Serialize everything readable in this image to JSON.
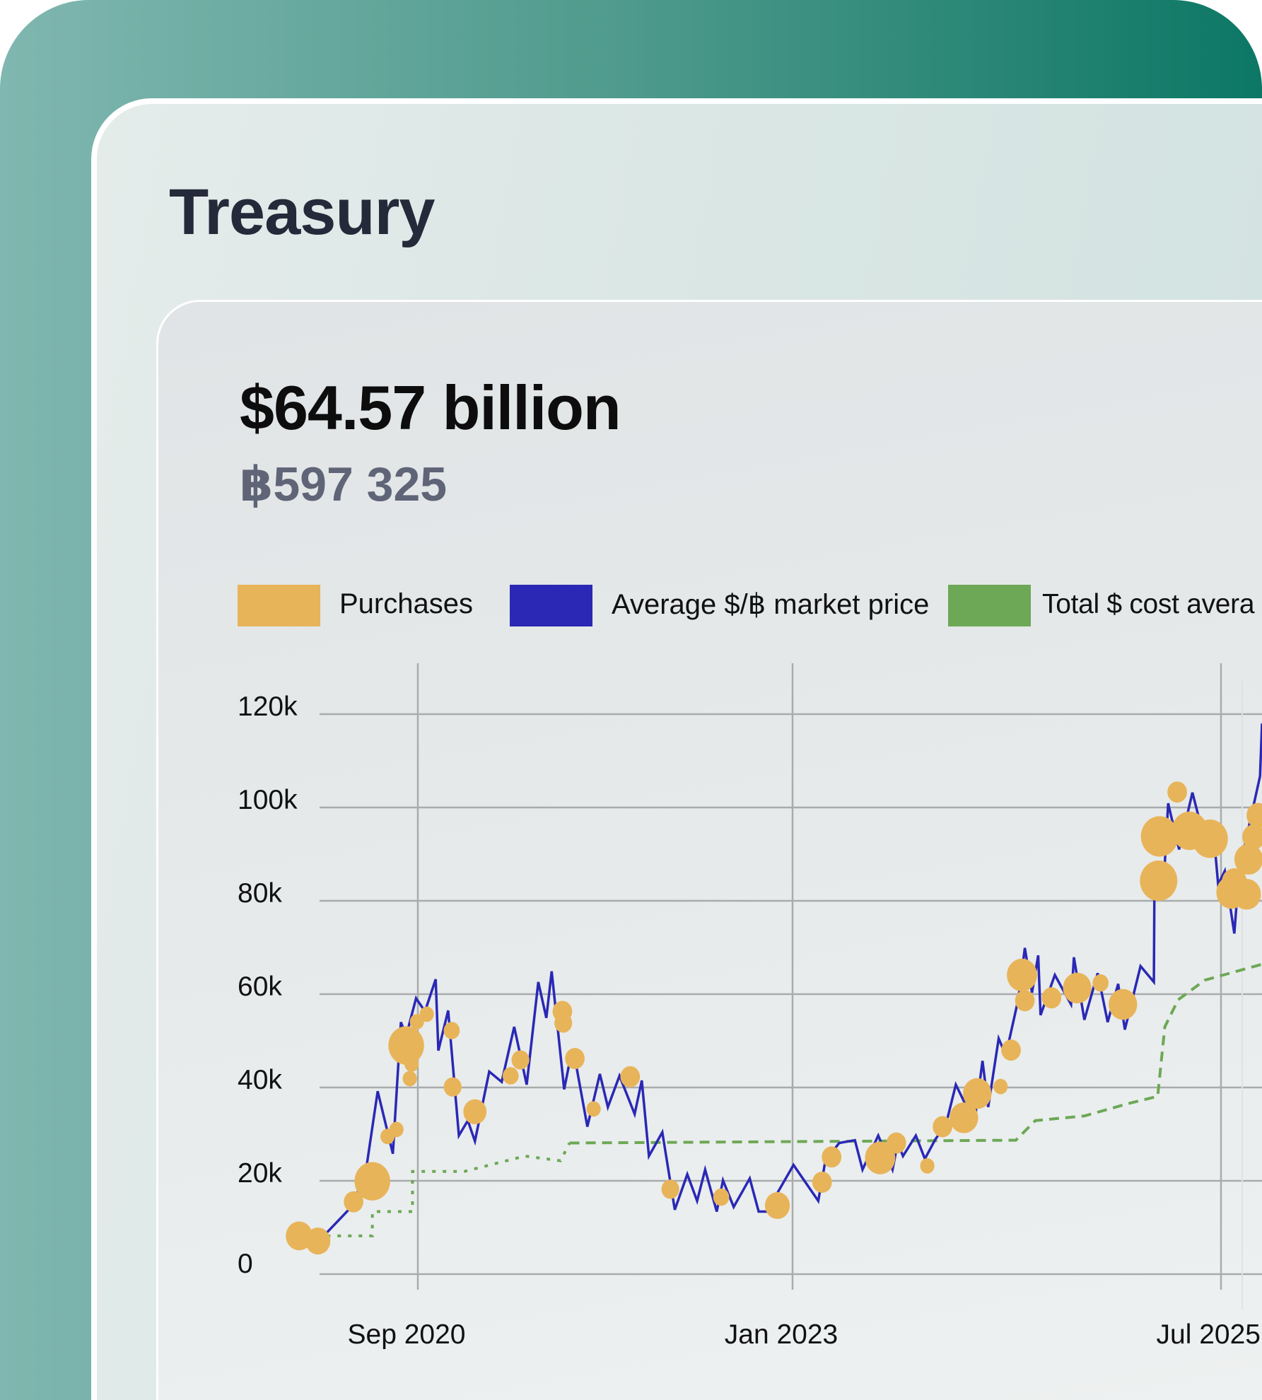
{
  "page": {
    "title": "Treasury"
  },
  "summary": {
    "usd_value": "$64.57 billion",
    "btc_holdings": "฿597 325"
  },
  "colors": {
    "purchases": "#e8b45a",
    "market_price": "#2a28b5",
    "cost_average": "#6da856"
  },
  "chart_data": {
    "type": "line",
    "legend": [
      {
        "label": "Purchases",
        "color": "#e8b45a"
      },
      {
        "label": "Average $/฿ market price",
        "color": "#2a28b5"
      },
      {
        "label": "Total $ cost avera",
        "color": "#6da856"
      }
    ],
    "legend_placement": "top",
    "grid": true,
    "ylim": [
      0,
      120000
    ],
    "y_ticks": [
      {
        "value": 0,
        "label": "0"
      },
      {
        "value": 20000,
        "label": "20k"
      },
      {
        "value": 40000,
        "label": "40k"
      },
      {
        "value": 60000,
        "label": "60k"
      },
      {
        "value": 80000,
        "label": "80k"
      },
      {
        "value": 100000,
        "label": "100k"
      },
      {
        "value": 120000,
        "label": "120k"
      }
    ],
    "x_ticks": [
      {
        "date": "2020-09-01",
        "label": "Sep 2020"
      },
      {
        "date": "2023-01-01",
        "label": "Jan 2023"
      },
      {
        "date": "2025-07-01",
        "label": "Jul 2025"
      }
    ],
    "series": [
      {
        "name": "Average $/฿ market price",
        "type": "line",
        "points": [
          [
            "2020-01-15",
            6700
          ],
          [
            "2020-04-05",
            14700
          ],
          [
            "2020-05-05",
            22400
          ],
          [
            "2020-06-01",
            39200
          ],
          [
            "2020-07-05",
            25800
          ],
          [
            "2020-07-23",
            54000
          ],
          [
            "2020-08-05",
            51100
          ],
          [
            "2020-08-27",
            59100
          ],
          [
            "2020-09-17",
            56300
          ],
          [
            "2020-10-11",
            63200
          ],
          [
            "2020-10-17",
            47900
          ],
          [
            "2020-11-09",
            56500
          ],
          [
            "2020-12-03",
            29700
          ],
          [
            "2020-12-23",
            32900
          ],
          [
            "2021-01-09",
            28500
          ],
          [
            "2021-02-11",
            43400
          ],
          [
            "2021-03-09",
            41200
          ],
          [
            "2021-04-07",
            53000
          ],
          [
            "2021-05-05",
            40600
          ],
          [
            "2021-06-01",
            62600
          ],
          [
            "2021-06-19",
            54900
          ],
          [
            "2021-07-01",
            64900
          ],
          [
            "2021-07-29",
            39600
          ],
          [
            "2021-08-09",
            44400
          ],
          [
            "2021-08-23",
            46300
          ],
          [
            "2021-09-21",
            31600
          ],
          [
            "2021-10-19",
            42900
          ],
          [
            "2021-11-07",
            35800
          ],
          [
            "2021-12-03",
            42500
          ],
          [
            "2022-01-07",
            34300
          ],
          [
            "2022-01-23",
            41500
          ],
          [
            "2022-02-09",
            25300
          ],
          [
            "2022-03-09",
            30400
          ],
          [
            "2022-04-07",
            13800
          ],
          [
            "2022-05-05",
            21400
          ],
          [
            "2022-05-27",
            15700
          ],
          [
            "2022-06-15",
            22400
          ],
          [
            "2022-07-11",
            13400
          ],
          [
            "2022-07-25",
            20100
          ],
          [
            "2022-08-19",
            14400
          ],
          [
            "2022-09-25",
            20500
          ],
          [
            "2022-10-15",
            13400
          ],
          [
            "2022-11-03",
            13400
          ],
          [
            "2023-01-03",
            23400
          ],
          [
            "2023-02-25",
            15700
          ],
          [
            "2023-03-10",
            24300
          ],
          [
            "2023-04-09",
            28100
          ],
          [
            "2023-05-12",
            28700
          ],
          [
            "2023-05-28",
            22400
          ],
          [
            "2023-07-01",
            29700
          ],
          [
            "2023-08-01",
            22400
          ],
          [
            "2023-08-12",
            28100
          ],
          [
            "2023-08-23",
            25300
          ],
          [
            "2023-09-20",
            29700
          ],
          [
            "2023-10-09",
            24700
          ],
          [
            "2023-11-01",
            28900
          ],
          [
            "2023-11-23",
            32000
          ],
          [
            "2023-12-14",
            40600
          ],
          [
            "2024-01-07",
            35800
          ],
          [
            "2024-01-22",
            31600
          ],
          [
            "2024-02-10",
            45700
          ],
          [
            "2024-02-22",
            35800
          ],
          [
            "2024-03-14",
            50500
          ],
          [
            "2024-03-29",
            46900
          ],
          [
            "2024-04-25",
            58800
          ],
          [
            "2024-05-09",
            69900
          ],
          [
            "2024-05-24",
            60300
          ],
          [
            "2024-06-07",
            68300
          ],
          [
            "2024-06-12",
            55500
          ],
          [
            "2024-07-12",
            64100
          ],
          [
            "2024-08-16",
            57800
          ],
          [
            "2024-08-22",
            67900
          ],
          [
            "2024-09-14",
            54500
          ],
          [
            "2024-10-12",
            64500
          ],
          [
            "2024-11-03",
            54000
          ],
          [
            "2024-11-25",
            62200
          ],
          [
            "2024-12-09",
            52400
          ],
          [
            "2025-01-12",
            66000
          ],
          [
            "2025-02-10",
            62600
          ],
          [
            "2025-02-11",
            80000
          ],
          [
            "2025-03-03",
            88100
          ],
          [
            "2025-03-10",
            100900
          ],
          [
            "2025-03-18",
            97400
          ],
          [
            "2025-04-03",
            91000
          ],
          [
            "2025-05-01",
            103200
          ],
          [
            "2025-05-14",
            98000
          ],
          [
            "2025-06-20",
            89300
          ],
          [
            "2025-06-25",
            83500
          ],
          [
            "2025-07-09",
            86400
          ],
          [
            "2025-07-29",
            73000
          ],
          [
            "2025-08-09",
            86400
          ],
          [
            "2025-09-23",
            106700
          ],
          [
            "2025-10-10",
            118000
          ]
        ]
      },
      {
        "name": "Total $ cost avera",
        "type": "step-line",
        "points": [
          [
            "2020-02-07",
            8200
          ],
          [
            "2020-05-19",
            8200
          ],
          [
            "2020-05-19",
            13400
          ],
          [
            "2020-08-19",
            13400
          ],
          [
            "2020-08-19",
            22000
          ],
          [
            "2020-12-15",
            22000
          ],
          [
            "2021-05-01",
            25300
          ],
          [
            "2021-07-21",
            24300
          ],
          [
            "2021-08-11",
            28100
          ],
          [
            "2024-04-20",
            28700
          ],
          [
            "2024-06-01",
            32900
          ],
          [
            "2024-09-14",
            33900
          ],
          [
            "2024-12-18",
            36600
          ],
          [
            "2025-02-18",
            38100
          ],
          [
            "2025-03-03",
            53000
          ],
          [
            "2025-04-01",
            58800
          ],
          [
            "2025-05-27",
            63000
          ],
          [
            "2025-09-27",
            66400
          ]
        ]
      },
      {
        "name": "Purchases",
        "type": "bubble",
        "points": [
          [
            "2019-12-05",
            8200,
            15
          ],
          [
            "2020-01-17",
            7100,
            14
          ],
          [
            "2020-04-07",
            15500,
            11
          ],
          [
            "2020-05-19",
            19900,
            20
          ],
          [
            "2020-06-23",
            29500,
            8
          ],
          [
            "2020-07-13",
            31000,
            8
          ],
          [
            "2020-08-05",
            49000,
            20
          ],
          [
            "2020-08-13",
            41900,
            8
          ],
          [
            "2020-08-17",
            45000,
            8
          ],
          [
            "2020-08-29",
            54100,
            8
          ],
          [
            "2020-09-21",
            55700,
            8
          ],
          [
            "2020-11-17",
            52200,
            9
          ],
          [
            "2020-11-19",
            40100,
            10
          ],
          [
            "2021-01-09",
            34800,
            13
          ],
          [
            "2021-03-29",
            42500,
            9
          ],
          [
            "2021-04-21",
            45900,
            10
          ],
          [
            "2021-07-25",
            56300,
            11
          ],
          [
            "2021-07-27",
            53800,
            10
          ],
          [
            "2021-08-23",
            46200,
            11
          ],
          [
            "2021-10-05",
            35400,
            8
          ],
          [
            "2021-12-27",
            42300,
            11
          ],
          [
            "2022-03-27",
            18200,
            10
          ],
          [
            "2022-07-21",
            16500,
            9
          ],
          [
            "2022-11-27",
            14700,
            14
          ],
          [
            "2023-03-03",
            19700,
            11
          ],
          [
            "2023-03-23",
            25100,
            11
          ],
          [
            "2023-07-05",
            24900,
            17
          ],
          [
            "2023-08-09",
            28100,
            11
          ],
          [
            "2023-10-14",
            23200,
            8
          ],
          [
            "2023-11-16",
            31600,
            11
          ],
          [
            "2024-01-01",
            33500,
            16
          ],
          [
            "2024-01-29",
            38700,
            16
          ],
          [
            "2024-03-18",
            40200,
            8
          ],
          [
            "2024-04-10",
            48000,
            11
          ],
          [
            "2024-05-03",
            64100,
            17
          ],
          [
            "2024-05-09",
            58600,
            11
          ],
          [
            "2024-07-05",
            59200,
            11
          ],
          [
            "2024-08-29",
            61300,
            16
          ],
          [
            "2024-10-18",
            62400,
            9
          ],
          [
            "2024-12-05",
            57800,
            16
          ],
          [
            "2025-02-20",
            84300,
            21
          ],
          [
            "2025-02-22",
            93800,
            21
          ],
          [
            "2025-03-29",
            103300,
            11
          ],
          [
            "2025-04-25",
            95000,
            20
          ],
          [
            "2025-06-08",
            93300,
            20
          ],
          [
            "2025-07-23",
            81800,
            17
          ],
          [
            "2025-07-29",
            84100,
            14
          ],
          [
            "2025-08-25",
            81400,
            16
          ],
          [
            "2025-08-29",
            88900,
            16
          ],
          [
            "2025-09-10",
            93700,
            13
          ],
          [
            "2025-09-19",
            98300,
            13
          ]
        ]
      }
    ]
  }
}
